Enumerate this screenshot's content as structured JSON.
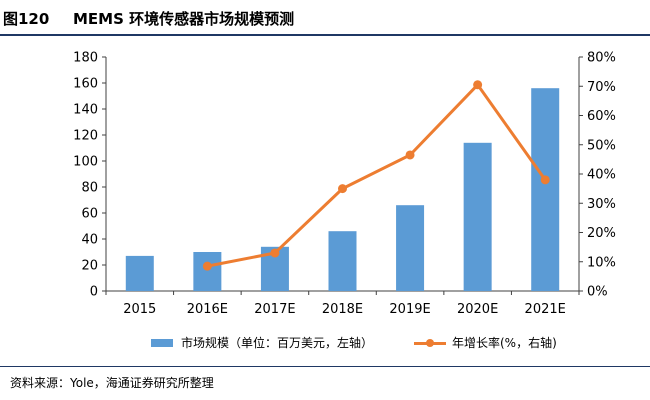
{
  "header": {
    "figure_no": "图120",
    "title": "MEMS 环境传感器市场规模预测"
  },
  "colors": {
    "bar": "#5b9bd5",
    "line": "#ed7d31",
    "rule": "#1f3864"
  },
  "chart_data": {
    "type": "bar",
    "title": "MEMS 环境传感器市场规模预测",
    "categories": [
      "2015",
      "2016E",
      "2017E",
      "2018E",
      "2019E",
      "2020E",
      "2021E"
    ],
    "series": [
      {
        "name": "市场规模（单位：百万美元，左轴）",
        "type": "bar",
        "axis": "left",
        "values": [
          27,
          30,
          34,
          46,
          66,
          114,
          156
        ]
      },
      {
        "name": "年增长率(%，右轴)",
        "type": "line",
        "axis": "right",
        "values": [
          null,
          8.5,
          13,
          35,
          46.5,
          70.5,
          38
        ]
      }
    ],
    "ylim_left": [
      0,
      180
    ],
    "yticks_left": [
      "0",
      "20",
      "40",
      "60",
      "80",
      "100",
      "120",
      "140",
      "160",
      "180"
    ],
    "ylim_right": [
      0,
      80
    ],
    "yticks_right": [
      "0%",
      "10%",
      "20%",
      "30%",
      "40%",
      "50%",
      "60%",
      "70%",
      "80%"
    ],
    "grid": false,
    "legend_position": "bottom"
  },
  "legend": {
    "bar_label": "市场规模（单位：百万美元，左轴）",
    "line_label": "年增长率(%，右轴)"
  },
  "footer": {
    "source": "资料来源：Yole，海通证券研究所整理"
  }
}
